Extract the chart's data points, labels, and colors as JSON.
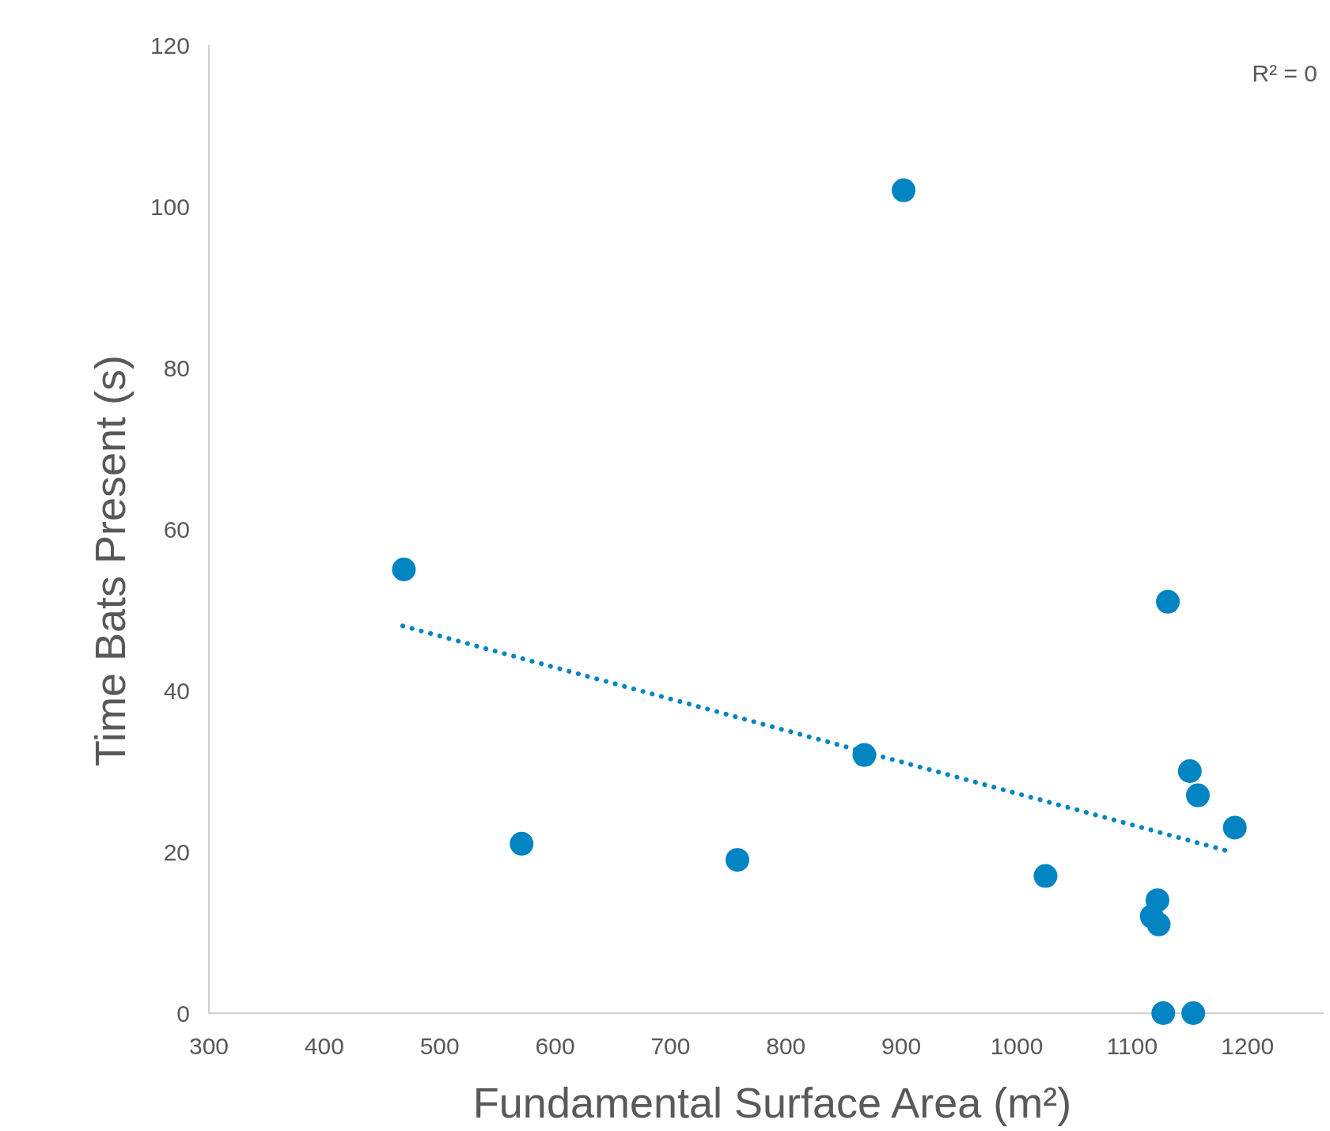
{
  "chart_data": {
    "type": "scatter",
    "xlabel": "Fundamental Surface Area (m²)",
    "ylabel": "Time Bats Present (s)",
    "annotations": [
      "R² = 0"
    ],
    "xlim": [
      300,
      1266
    ],
    "xticks": [
      300,
      400,
      500,
      600,
      700,
      800,
      900,
      1000,
      1100,
      1200
    ],
    "ylim": [
      0,
      120
    ],
    "yticks": [
      0,
      20,
      40,
      60,
      80,
      100,
      120
    ],
    "grid": false,
    "series": [
      {
        "marker": "circle",
        "color": "#0084c2",
        "x": [
          469,
          571,
          758,
          868,
          902,
          1025,
          1131,
          1150,
          1157,
          1189,
          1122,
          1117,
          1123,
          1127,
          1153
        ],
        "values": [
          55,
          21,
          19,
          32,
          102,
          17,
          51,
          30,
          27,
          23,
          14,
          12,
          11,
          0,
          0
        ]
      },
      {
        "type": "line",
        "line_style": "dotted",
        "marker": "none",
        "color": "#0084c2",
        "x": [
          468,
          1183
        ],
        "values": [
          48,
          20.1
        ]
      }
    ]
  }
}
